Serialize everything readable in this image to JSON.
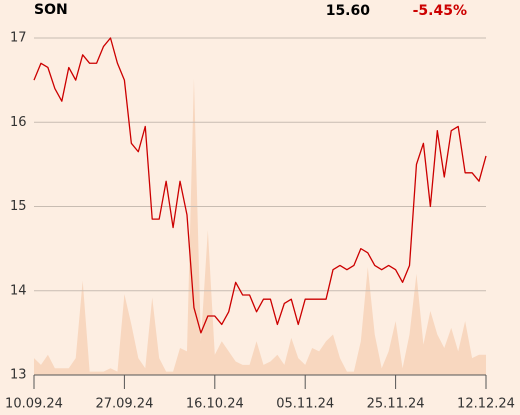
{
  "chart_data": {
    "type": "line",
    "title": "SON",
    "price": "15.60",
    "change": "-5.45%",
    "categories": [
      "10.09.24",
      null,
      null,
      null,
      null,
      null,
      null,
      null,
      null,
      null,
      null,
      null,
      null,
      "27.09.24",
      null,
      null,
      null,
      null,
      null,
      null,
      null,
      null,
      null,
      null,
      null,
      null,
      "16.10.24",
      null,
      null,
      null,
      null,
      null,
      null,
      null,
      null,
      null,
      null,
      null,
      null,
      "05.11.24",
      null,
      null,
      null,
      null,
      null,
      null,
      null,
      null,
      null,
      null,
      null,
      null,
      "25.11.24",
      null,
      null,
      null,
      null,
      null,
      null,
      null,
      null,
      null,
      null,
      null,
      null,
      "12.12.24"
    ],
    "series": [
      {
        "name": "price",
        "color": "#cc0000",
        "values": [
          16.5,
          16.7,
          16.65,
          16.4,
          16.25,
          16.65,
          16.5,
          16.8,
          16.7,
          16.7,
          16.9,
          17.0,
          16.7,
          16.5,
          15.75,
          15.65,
          15.95,
          14.85,
          14.85,
          15.3,
          14.75,
          15.3,
          14.9,
          13.8,
          13.5,
          13.7,
          13.7,
          13.6,
          13.75,
          14.1,
          13.95,
          13.95,
          13.75,
          13.9,
          13.9,
          13.6,
          13.85,
          13.9,
          13.6,
          13.9,
          13.9,
          13.9,
          13.9,
          14.25,
          14.3,
          14.25,
          14.3,
          14.5,
          14.45,
          14.3,
          14.25,
          14.3,
          14.25,
          14.1,
          14.3,
          15.5,
          15.75,
          15.0,
          15.9,
          15.35,
          15.9,
          15.95,
          15.4,
          15.4,
          15.3,
          15.6
        ]
      },
      {
        "name": "volume",
        "color": "#f8d7bf",
        "axis": "y2",
        "values": [
          5,
          3,
          6,
          2,
          2,
          2,
          5,
          28,
          1,
          1,
          1,
          2,
          1,
          24,
          15,
          5,
          2,
          23,
          5,
          1,
          1,
          8,
          7,
          88,
          10,
          43,
          6,
          10,
          7,
          4,
          3,
          3,
          10,
          3,
          4,
          6,
          3,
          11,
          5,
          3,
          8,
          7,
          10,
          12,
          5,
          1,
          1,
          10,
          32,
          12,
          2,
          7,
          16,
          2,
          12,
          30,
          9,
          19,
          12,
          8,
          14,
          7,
          16,
          5,
          6,
          6
        ]
      }
    ],
    "ylim": [
      13,
      17
    ],
    "yticks": [
      13,
      14,
      15,
      16,
      17
    ],
    "y2lim": [
      0,
      100
    ],
    "grid": true
  }
}
